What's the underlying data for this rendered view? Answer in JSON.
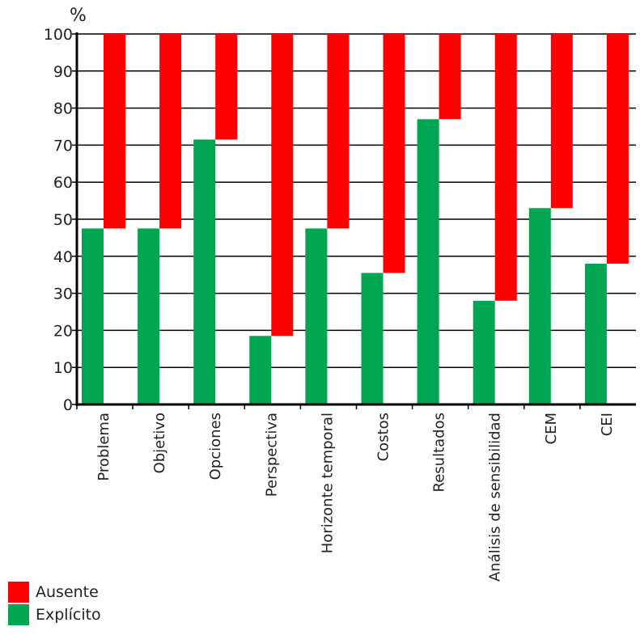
{
  "chart_data": {
    "type": "bar",
    "stacked": true,
    "ylabel": "%",
    "ylim": [
      0,
      100
    ],
    "yticks": [
      0,
      10,
      20,
      30,
      40,
      50,
      60,
      70,
      80,
      90,
      100
    ],
    "grid": true,
    "categories": [
      "Problema",
      "Objetivo",
      "Opciones",
      "Perspectiva",
      "Horizonte temporal",
      "Costos",
      "Resultados",
      "Análisis de sensibilidad",
      "CEM",
      "CEI"
    ],
    "series": [
      {
        "name": "Explícito",
        "color": "#00a651",
        "values": [
          47.5,
          47.5,
          71.5,
          18.5,
          47.5,
          35.5,
          77,
          28,
          53,
          38
        ]
      },
      {
        "name": "Ausente",
        "color": "#ff0000",
        "values": [
          52.5,
          52.5,
          28.5,
          81.5,
          52.5,
          64.5,
          23,
          72,
          47,
          62
        ]
      }
    ],
    "legend": {
      "position": "bottom-left",
      "items": [
        {
          "label": "Ausente",
          "color": "#ff0000"
        },
        {
          "label": "Explícito",
          "color": "#00a651"
        }
      ]
    }
  }
}
